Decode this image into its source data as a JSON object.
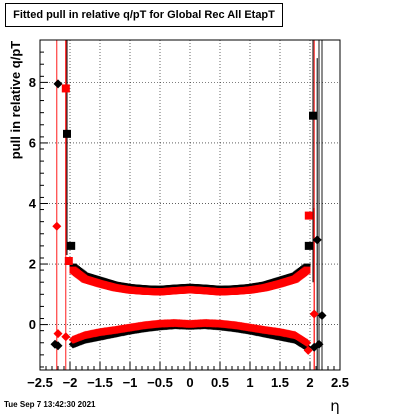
{
  "chart_data": {
    "type": "scatter",
    "title": "Fitted pull in relative q/pT for Global Rec All EtapT",
    "xlabel": "η",
    "ylabel": "pull in relative q/pT",
    "xlim": [
      -2.5,
      2.5
    ],
    "ylim": [
      -1.5,
      9.4
    ],
    "grid": true,
    "x_ticks": [
      -2.5,
      -2,
      -1.5,
      -1,
      -0.5,
      0,
      0.5,
      1,
      1.5,
      2,
      2.5
    ],
    "x_tick_labels": [
      "−2.5",
      "−2",
      "−1.5",
      "−1",
      "−0.5",
      "0",
      "0.5",
      "1",
      "1.5",
      "2",
      "2.5"
    ],
    "y_ticks": [
      0,
      2,
      4,
      6,
      8
    ],
    "y_tick_labels": [
      "0",
      "2",
      "4",
      "6",
      "8"
    ],
    "series": [
      {
        "color": "#000000",
        "kind": "sigma",
        "outer_points": [
          {
            "x": -2.25,
            "y": -0.65,
            "marker": "diamond"
          },
          {
            "x": -2.2,
            "y": 7.95,
            "marker": "diamond"
          },
          {
            "x": -2.05,
            "y": 6.3,
            "marker": "square",
            "err": 4.0
          },
          {
            "x": -1.98,
            "y": 2.6,
            "marker": "square"
          },
          {
            "x": 1.98,
            "y": 2.6,
            "marker": "square"
          },
          {
            "x": 2.05,
            "y": 6.9,
            "marker": "square",
            "err": 5.5
          },
          {
            "x": 2.12,
            "y": 2.8,
            "marker": "diamond",
            "err": 6.0
          }
        ],
        "band": [
          [
            -1.95,
            1.9
          ],
          [
            -1.75,
            1.6
          ],
          [
            -1.5,
            1.45
          ],
          [
            -1.25,
            1.3
          ],
          [
            -1.0,
            1.22
          ],
          [
            -0.75,
            1.18
          ],
          [
            -0.5,
            1.16
          ],
          [
            -0.25,
            1.2
          ],
          [
            0.0,
            1.23
          ],
          [
            0.25,
            1.2
          ],
          [
            0.5,
            1.16
          ],
          [
            0.75,
            1.18
          ],
          [
            1.0,
            1.22
          ],
          [
            1.25,
            1.3
          ],
          [
            1.5,
            1.45
          ],
          [
            1.75,
            1.6
          ],
          [
            1.95,
            1.9
          ]
        ]
      },
      {
        "color": "#ff0000",
        "kind": "sigma",
        "outer_points": [
          {
            "x": -2.22,
            "y": 3.25,
            "marker": "diamond"
          },
          {
            "x": -2.07,
            "y": 7.8,
            "marker": "square",
            "err": 5.5
          },
          {
            "x": -2.02,
            "y": 2.1,
            "marker": "square"
          },
          {
            "x": 1.98,
            "y": 3.6,
            "marker": "square"
          },
          {
            "x": 2.07,
            "y": 0.35,
            "marker": "diamond",
            "err": 3.5
          }
        ],
        "band": [
          [
            -1.95,
            1.8
          ],
          [
            -1.75,
            1.5
          ],
          [
            -1.5,
            1.35
          ],
          [
            -1.25,
            1.22
          ],
          [
            -1.0,
            1.14
          ],
          [
            -0.75,
            1.1
          ],
          [
            -0.5,
            1.08
          ],
          [
            -0.25,
            1.12
          ],
          [
            0.0,
            1.15
          ],
          [
            0.25,
            1.12
          ],
          [
            0.5,
            1.08
          ],
          [
            0.75,
            1.1
          ],
          [
            1.0,
            1.14
          ],
          [
            1.25,
            1.22
          ],
          [
            1.5,
            1.35
          ],
          [
            1.75,
            1.5
          ],
          [
            1.95,
            1.8
          ]
        ]
      },
      {
        "color": "#000000",
        "kind": "mean",
        "outer_points": [
          {
            "x": -2.2,
            "y": -0.7,
            "marker": "diamond"
          },
          {
            "x": 2.07,
            "y": -0.75,
            "marker": "diamond"
          },
          {
            "x": 2.15,
            "y": -0.65,
            "marker": "diamond"
          },
          {
            "x": 2.2,
            "y": 0.3,
            "marker": "diamond"
          }
        ],
        "band": [
          [
            -1.95,
            -0.65
          ],
          [
            -1.75,
            -0.5
          ],
          [
            -1.5,
            -0.4
          ],
          [
            -1.25,
            -0.3
          ],
          [
            -1.0,
            -0.2
          ],
          [
            -0.75,
            -0.12
          ],
          [
            -0.5,
            -0.06
          ],
          [
            -0.25,
            -0.02
          ],
          [
            0.0,
            -0.04
          ],
          [
            0.25,
            -0.02
          ],
          [
            0.5,
            -0.06
          ],
          [
            0.75,
            -0.12
          ],
          [
            1.0,
            -0.2
          ],
          [
            1.25,
            -0.3
          ],
          [
            1.5,
            -0.4
          ],
          [
            1.75,
            -0.5
          ],
          [
            1.95,
            -0.75
          ]
        ]
      },
      {
        "color": "#ff0000",
        "kind": "mean",
        "outer_points": [
          {
            "x": -2.2,
            "y": -0.3,
            "marker": "diamond"
          },
          {
            "x": -2.07,
            "y": -0.4,
            "marker": "diamond"
          },
          {
            "x": 1.97,
            "y": -0.85,
            "marker": "diamond"
          }
        ],
        "band": [
          [
            -1.95,
            -0.5
          ],
          [
            -1.75,
            -0.35
          ],
          [
            -1.5,
            -0.25
          ],
          [
            -1.25,
            -0.18
          ],
          [
            -1.0,
            -0.1
          ],
          [
            -0.75,
            -0.02
          ],
          [
            -0.5,
            0.03
          ],
          [
            -0.25,
            0.05
          ],
          [
            0.0,
            0.02
          ],
          [
            0.25,
            0.05
          ],
          [
            0.5,
            0.03
          ],
          [
            0.75,
            -0.02
          ],
          [
            1.0,
            -0.1
          ],
          [
            1.25,
            -0.18
          ],
          [
            1.5,
            -0.25
          ],
          [
            1.75,
            -0.35
          ],
          [
            1.95,
            -0.6
          ]
        ]
      }
    ]
  },
  "footer": {
    "timestamp": "Tue Sep  7 13:42:30 2021"
  }
}
